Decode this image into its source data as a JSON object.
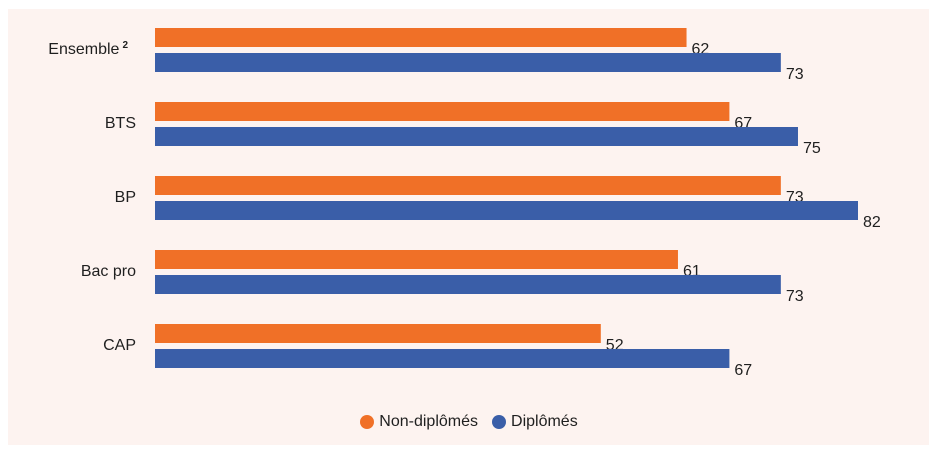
{
  "colors": {
    "background": "#fdf3f0",
    "non_diplomes": "#f07027",
    "diplomes": "#3a5ea8"
  },
  "chart_data": {
    "type": "bar",
    "orientation": "horizontal",
    "categories": [
      "Ensemble",
      "BTS",
      "BP",
      "Bac pro",
      "CAP"
    ],
    "category_footnotes": [
      "2",
      "",
      "",
      "",
      ""
    ],
    "series": [
      {
        "name": "Non-diplômés",
        "values": [
          62,
          67,
          73,
          61,
          52
        ]
      },
      {
        "name": "Diplômés",
        "values": [
          73,
          75,
          82,
          73,
          67
        ]
      }
    ],
    "title": "",
    "xlabel": "",
    "ylabel": "",
    "xlim": [
      0,
      82
    ],
    "grid": false,
    "legend_position": "bottom-center",
    "data_labels": true
  }
}
